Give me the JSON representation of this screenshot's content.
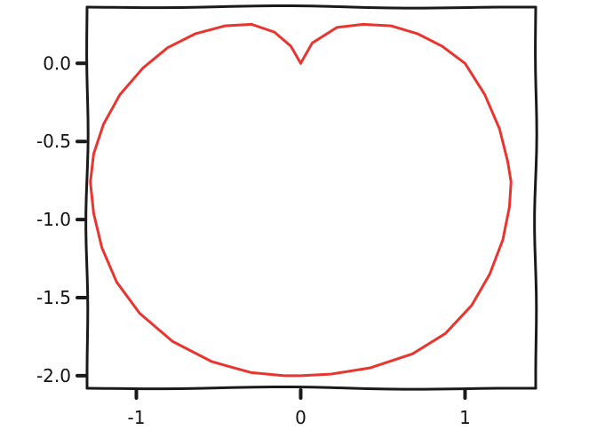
{
  "chart_data": {
    "type": "line",
    "title": "",
    "xlabel": "",
    "ylabel": "",
    "xlim": [
      -1.3,
      1.43
    ],
    "ylim": [
      -2.08,
      0.36
    ],
    "grid": false,
    "legend": "none",
    "x_ticks": [
      {
        "value": -1,
        "label": "-1"
      },
      {
        "value": 0,
        "label": "0"
      },
      {
        "value": 1,
        "label": "1"
      }
    ],
    "y_ticks": [
      {
        "value": 0.0,
        "label": "0.0"
      },
      {
        "value": -0.5,
        "label": "-0.5"
      },
      {
        "value": -1.0,
        "label": "-1.0"
      },
      {
        "value": -1.5,
        "label": "-1.5"
      },
      {
        "value": -2.0,
        "label": "-2.0"
      }
    ],
    "series": [
      {
        "color": "#e8352f",
        "points": [
          [
            0.0,
            0.0
          ],
          [
            0.07,
            0.13
          ],
          [
            0.22,
            0.23
          ],
          [
            0.38,
            0.25
          ],
          [
            0.55,
            0.24
          ],
          [
            0.71,
            0.19
          ],
          [
            0.86,
            0.11
          ],
          [
            1.0,
            0.0
          ],
          [
            1.12,
            -0.2
          ],
          [
            1.21,
            -0.42
          ],
          [
            1.26,
            -0.63
          ],
          [
            1.28,
            -0.76
          ],
          [
            1.27,
            -0.92
          ],
          [
            1.23,
            -1.13
          ],
          [
            1.15,
            -1.35
          ],
          [
            1.04,
            -1.55
          ],
          [
            0.88,
            -1.73
          ],
          [
            0.68,
            -1.86
          ],
          [
            0.42,
            -1.95
          ],
          [
            0.18,
            -1.99
          ],
          [
            0.0,
            -2.0
          ],
          [
            -0.1,
            -2.0
          ],
          [
            -0.3,
            -1.98
          ],
          [
            -0.54,
            -1.91
          ],
          [
            -0.78,
            -1.78
          ],
          [
            -0.98,
            -1.6
          ],
          [
            -1.12,
            -1.4
          ],
          [
            -1.21,
            -1.18
          ],
          [
            -1.26,
            -0.96
          ],
          [
            -1.28,
            -0.76
          ],
          [
            -1.26,
            -0.58
          ],
          [
            -1.2,
            -0.39
          ],
          [
            -1.1,
            -0.2
          ],
          [
            -0.96,
            -0.03
          ],
          [
            -0.81,
            0.1
          ],
          [
            -0.64,
            0.19
          ],
          [
            -0.46,
            0.24
          ],
          [
            -0.3,
            0.25
          ],
          [
            -0.16,
            0.2
          ],
          [
            -0.06,
            0.11
          ],
          [
            0.0,
            0.0
          ]
        ]
      }
    ]
  },
  "colors": {
    "axes": "#1a1a1a",
    "background": "#ffffff"
  }
}
